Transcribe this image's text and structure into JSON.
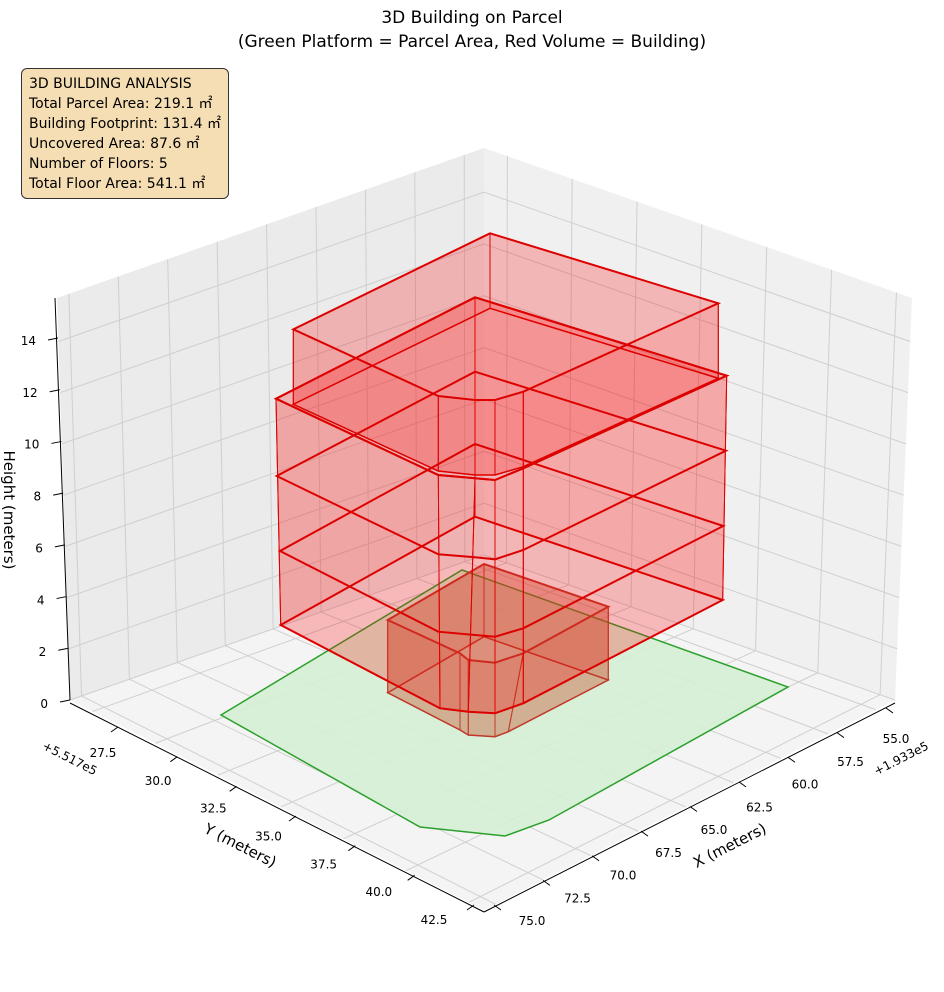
{
  "chart_data": {
    "type": "3d-polygon",
    "title": "3D Building on Parcel",
    "subtitle": "(Green Platform = Parcel Area, Red Volume = Building)",
    "xlabel": "X (meters)",
    "ylabel": "Y (meters)",
    "zlabel": "Height (meters)",
    "x_offset_label": "+1.933e5",
    "y_offset_label": "+5.517e5",
    "xticks": [
      "55.0",
      "57.5",
      "60.0",
      "62.5",
      "65.0",
      "67.5",
      "70.0",
      "72.5",
      "75.0"
    ],
    "yticks": [
      "27.5",
      "30.0",
      "32.5",
      "35.0",
      "37.5",
      "40.0",
      "42.5"
    ],
    "zticks": [
      "0",
      "2",
      "4",
      "6",
      "8",
      "10",
      "12",
      "14"
    ],
    "xlim": [
      54.0,
      75.6
    ],
    "ylim": [
      26.6,
      43.1
    ],
    "zlim": [
      0,
      15.7
    ],
    "grid": true,
    "series": [
      {
        "name": "Parcel Area",
        "kind": "platform",
        "color": "#2ca02c",
        "fill": "#d4f0d4",
        "z": 0
      },
      {
        "name": "Building",
        "kind": "volume",
        "color": "#dd0000",
        "fill": "#ff0000",
        "floors": 5,
        "floor_levels": [
          0,
          3,
          6,
          9,
          12,
          15
        ]
      }
    ]
  },
  "info_box": {
    "lines": [
      "3D BUILDING ANALYSIS",
      "Total Parcel Area: 219.1 ㎡",
      "Building Footprint: 131.4 ㎡",
      "Uncovered Area: 87.6 ㎡",
      "Number of Floors: 5",
      "Total Floor Area: 541.1 ㎡"
    ]
  }
}
